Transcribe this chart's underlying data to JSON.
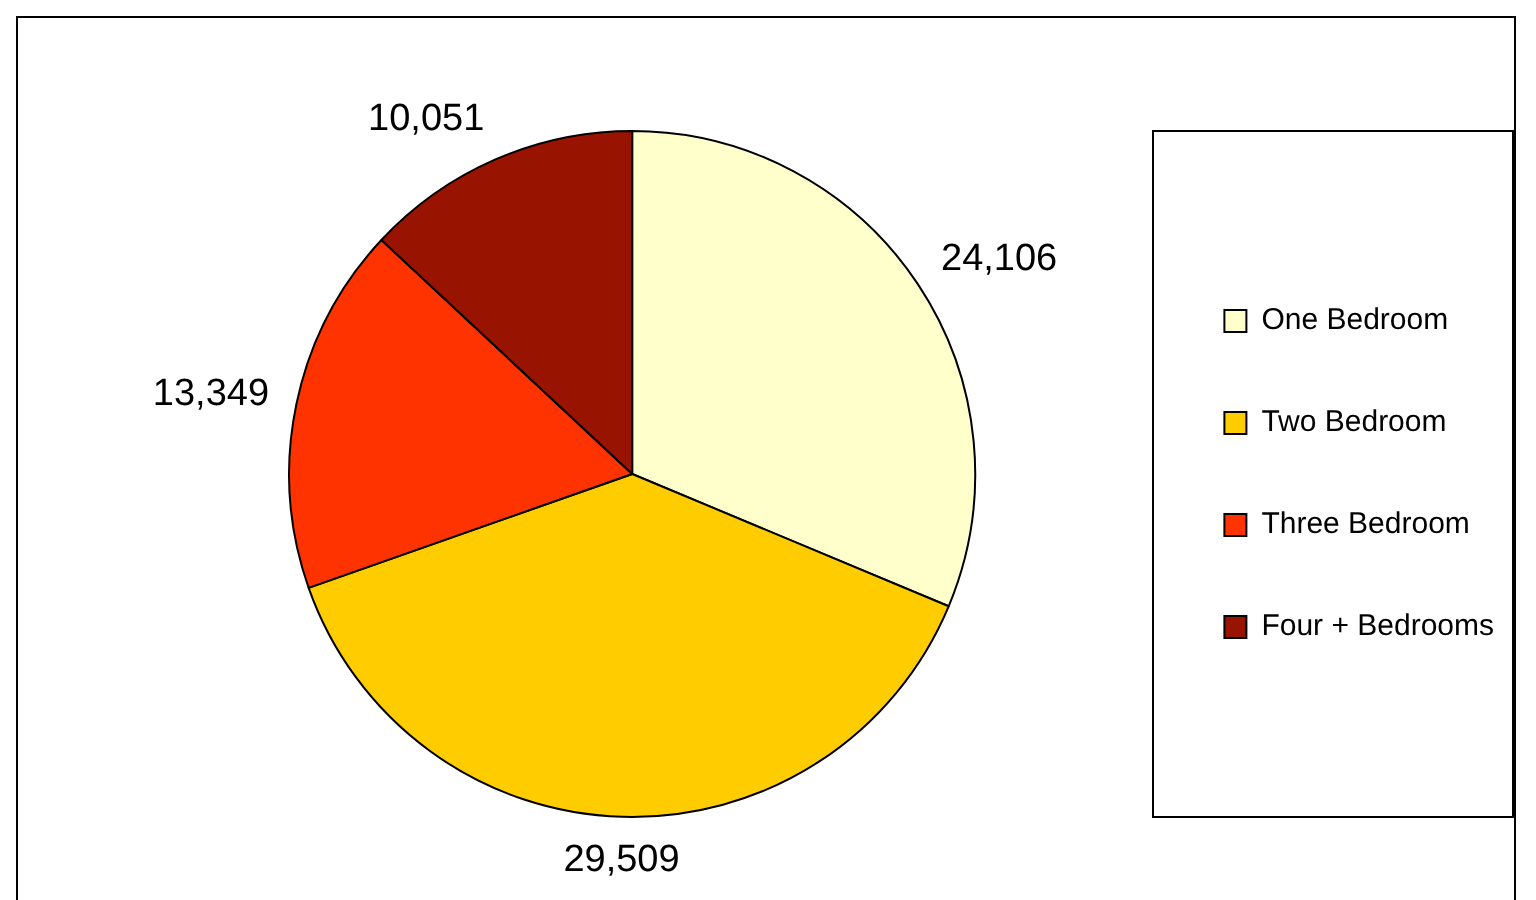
{
  "chart_data": {
    "type": "pie",
    "categories": [
      "One Bedroom",
      "Two Bedroom",
      "Three Bedroom",
      "Four + Bedrooms"
    ],
    "values": [
      24106,
      29509,
      13349,
      10051
    ],
    "value_labels": [
      "24,106",
      "29,509",
      "13,349",
      "10,051"
    ],
    "colors": [
      "#ffffcc",
      "#ffcc00",
      "#ff3300",
      "#991400"
    ],
    "legend": "right"
  }
}
